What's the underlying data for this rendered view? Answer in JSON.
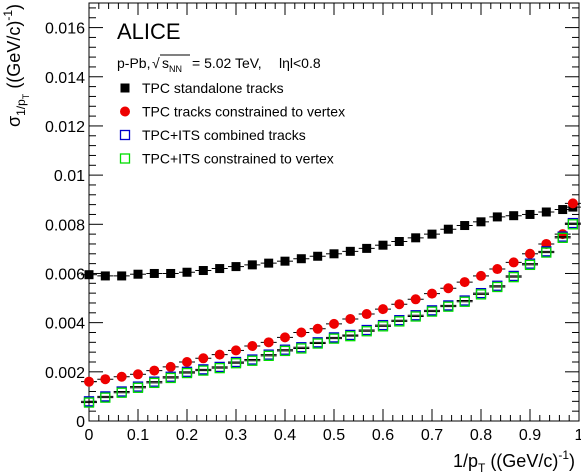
{
  "chart_data": {
    "type": "scatter",
    "experiment": "ALICE",
    "system": "p-Pb,",
    "energy": "= 5.02 TeV,",
    "eta_cut": "lηl<0.8",
    "xlabel": "1/pT ((GeV/c)-1)",
    "ylabel": "σ1/pT ((GeV/c)-1)",
    "xlim": [
      0,
      1
    ],
    "ylim": [
      0,
      0.017
    ],
    "x_ticks": [
      "0",
      "0.1",
      "0.2",
      "0.3",
      "0.4",
      "0.5",
      "0.6",
      "0.7",
      "0.8",
      "0.9",
      "1"
    ],
    "y_ticks": [
      "0",
      "0.002",
      "0.004",
      "0.006",
      "0.008",
      "0.01",
      "0.012",
      "0.014",
      "0.016"
    ],
    "legend_position": "top-left",
    "x": [
      0.0,
      0.0333,
      0.0667,
      0.1,
      0.1333,
      0.1667,
      0.2,
      0.2333,
      0.2667,
      0.3,
      0.3333,
      0.3667,
      0.4,
      0.4333,
      0.4667,
      0.5,
      0.5333,
      0.5667,
      0.6,
      0.6333,
      0.6667,
      0.7,
      0.7333,
      0.7667,
      0.8,
      0.8333,
      0.8667,
      0.9,
      0.9333,
      0.9667,
      0.9875
    ],
    "series": [
      {
        "name": "TPC standalone tracks",
        "marker": "filled-square",
        "color": "#000000",
        "values": [
          0.00595,
          0.0059,
          0.0059,
          0.00597,
          0.006,
          0.006,
          0.00605,
          0.00612,
          0.0062,
          0.00628,
          0.00635,
          0.00642,
          0.0065,
          0.0066,
          0.0067,
          0.0068,
          0.0069,
          0.00702,
          0.00715,
          0.0073,
          0.00745,
          0.0076,
          0.0078,
          0.00795,
          0.0081,
          0.0083,
          0.00835,
          0.0084,
          0.0085,
          0.0086,
          0.0087
        ]
      },
      {
        "name": "TPC tracks constrained to vertex",
        "marker": "filled-circle",
        "color": "#ee0000",
        "values": [
          0.0016,
          0.0017,
          0.0018,
          0.0019,
          0.00205,
          0.0022,
          0.0024,
          0.00255,
          0.0027,
          0.00287,
          0.00305,
          0.0032,
          0.0034,
          0.0036,
          0.00375,
          0.00395,
          0.00415,
          0.00435,
          0.00455,
          0.00475,
          0.00495,
          0.00518,
          0.0054,
          0.00565,
          0.0059,
          0.00618,
          0.00645,
          0.0068,
          0.0072,
          0.0076,
          0.00885
        ]
      },
      {
        "name": "TPC+ITS combined tracks",
        "marker": "open-square",
        "color": "#0000cc",
        "values": [
          0.0008,
          0.001,
          0.0012,
          0.0014,
          0.0016,
          0.0018,
          0.002,
          0.0021,
          0.0022,
          0.0024,
          0.0025,
          0.0027,
          0.0029,
          0.003,
          0.0032,
          0.0034,
          0.0035,
          0.0037,
          0.0039,
          0.0041,
          0.0043,
          0.0045,
          0.0047,
          0.0049,
          0.0052,
          0.0055,
          0.0059,
          0.0064,
          0.0069,
          0.0075,
          0.00805
        ]
      },
      {
        "name": "TPC+ITS constrained to vertex",
        "marker": "open-square",
        "color": "#00dd00",
        "values": [
          0.00075,
          0.00095,
          0.00115,
          0.00135,
          0.00155,
          0.00175,
          0.00195,
          0.00205,
          0.00215,
          0.00235,
          0.00245,
          0.00265,
          0.00285,
          0.00295,
          0.00315,
          0.00335,
          0.00345,
          0.00365,
          0.00385,
          0.00405,
          0.00425,
          0.00445,
          0.00465,
          0.00485,
          0.00515,
          0.00545,
          0.00585,
          0.00635,
          0.00685,
          0.00745,
          0.008
        ]
      }
    ]
  }
}
